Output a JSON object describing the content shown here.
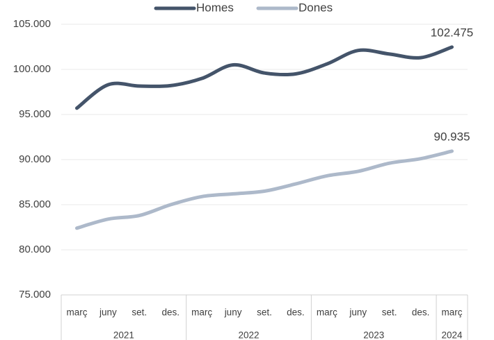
{
  "chart_data": {
    "type": "line",
    "categories": [
      "març",
      "juny",
      "set.",
      "des.",
      "març",
      "juny",
      "set.",
      "des.",
      "març",
      "juny",
      "set.",
      "des.",
      "març"
    ],
    "year_groups": [
      {
        "label": "2021",
        "count": 4
      },
      {
        "label": "2022",
        "count": 4
      },
      {
        "label": "2023",
        "count": 4
      },
      {
        "label": "2024",
        "count": 1
      }
    ],
    "series": [
      {
        "name": "Homes",
        "color": "#44546a",
        "values": [
          95700,
          98300,
          98150,
          98200,
          99000,
          100500,
          99600,
          99500,
          100600,
          102100,
          101700,
          101300,
          102475
        ],
        "value_labels": [
          null,
          null,
          null,
          null,
          null,
          null,
          null,
          null,
          null,
          null,
          null,
          null,
          "102.475"
        ]
      },
      {
        "name": "Dones",
        "color": "#adb9ca",
        "values": [
          82400,
          83400,
          83800,
          85000,
          85900,
          86200,
          86500,
          87300,
          88200,
          88700,
          89600,
          90100,
          90935
        ],
        "value_labels": [
          null,
          null,
          null,
          null,
          null,
          null,
          null,
          null,
          null,
          null,
          null,
          null,
          "90.935"
        ]
      }
    ],
    "ylim": [
      75000,
      105000
    ],
    "yticks": [
      {
        "value": 75000,
        "label": "75.000"
      },
      {
        "value": 80000,
        "label": "80.000"
      },
      {
        "value": 85000,
        "label": "85.000"
      },
      {
        "value": 90000,
        "label": "90.000"
      },
      {
        "value": 95000,
        "label": "95.000"
      },
      {
        "value": 100000,
        "label": "100.000"
      },
      {
        "value": 105000,
        "label": "105.000"
      }
    ],
    "grid": true,
    "legend": "top"
  }
}
